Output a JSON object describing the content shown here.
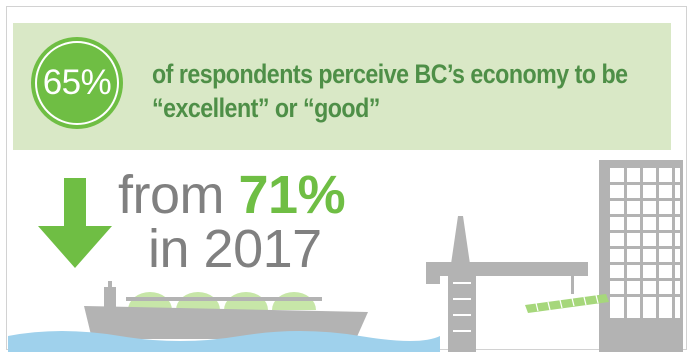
{
  "stat": {
    "percent": "65%",
    "line1": "of respondents perceive BC’s economy to be",
    "line2": "“excellent” or “good”"
  },
  "comparison": {
    "from_word": "from",
    "previous_percent": "71%",
    "year_line": "in 2017"
  },
  "icons": [
    "down-arrow-icon",
    "tanker-ship-icon",
    "crane-icon",
    "building-icon",
    "water-icon"
  ],
  "colors": {
    "accent_green": "#6fbe44",
    "banner_bg": "#d9e8c6",
    "headline_green": "#4e8f47",
    "grey_text": "#808080",
    "illustration_grey": "#b3b3b3",
    "water_blue": "#9fd1ec"
  }
}
